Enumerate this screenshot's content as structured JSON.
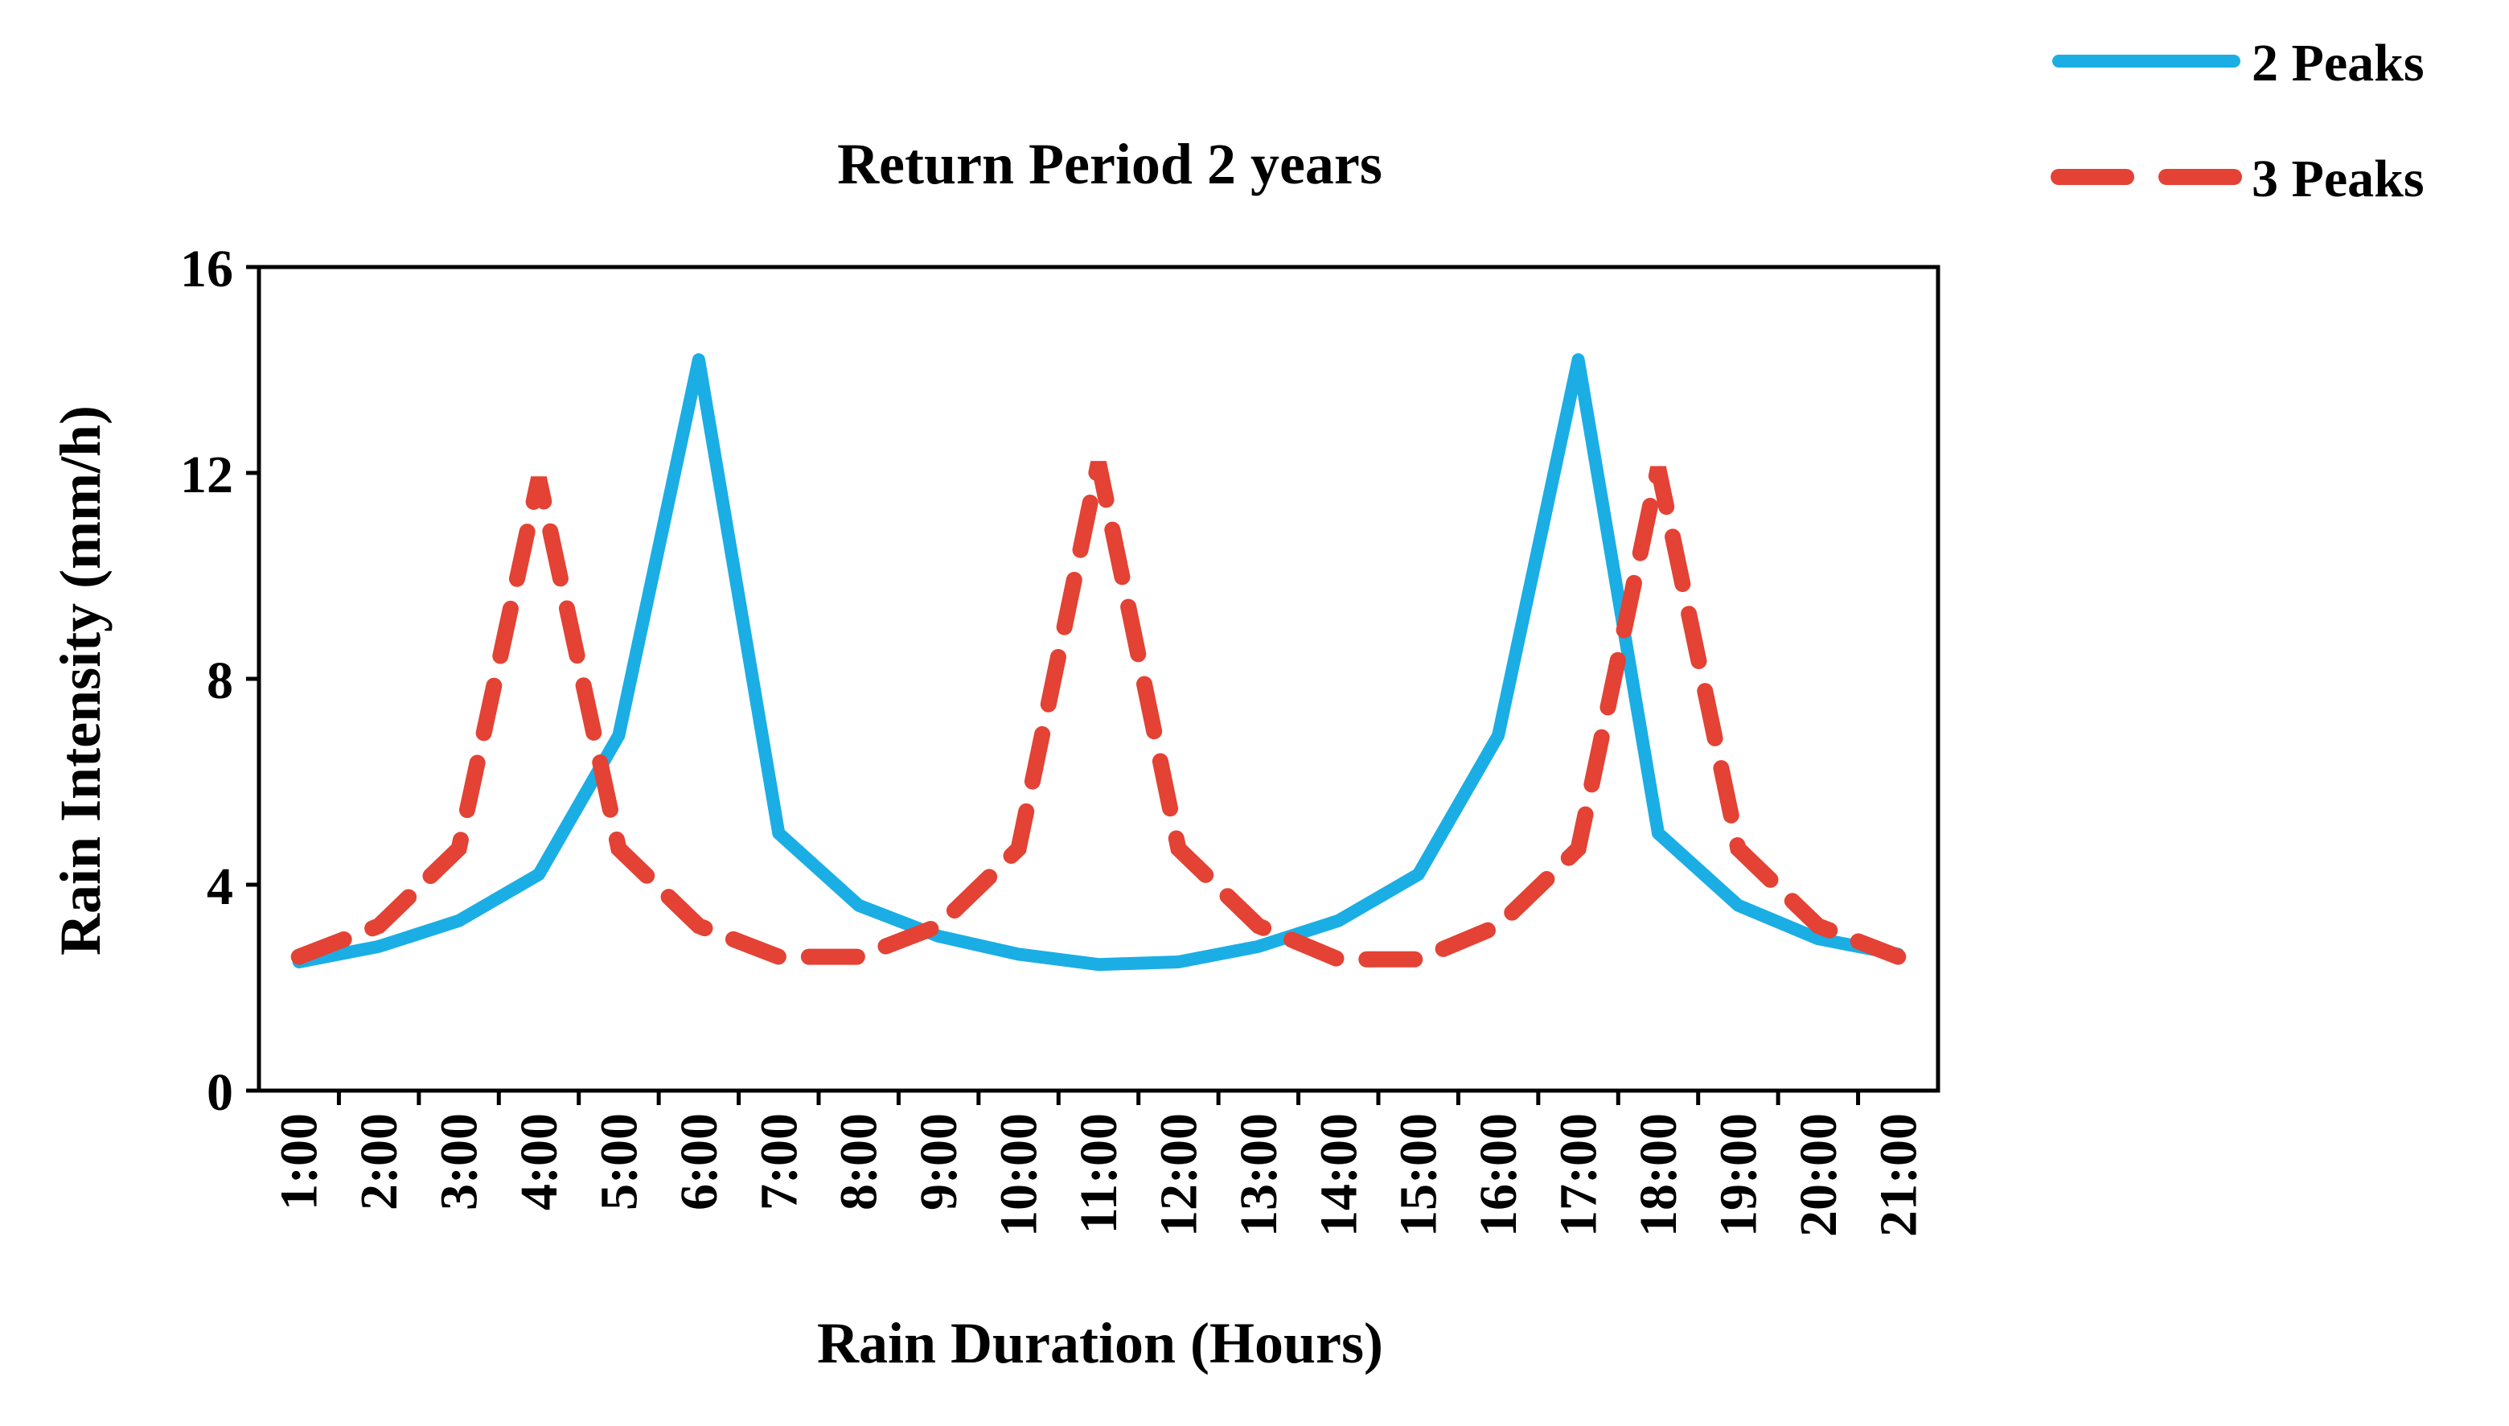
{
  "chart_data": {
    "type": "line",
    "title": "Return Period 2 years",
    "xlabel": "Rain Duration (Hours)",
    "ylabel": "Rain Intensity (mm/h)",
    "categories": [
      "1:00",
      "2:00",
      "3:00",
      "4:00",
      "5:00",
      "6:00",
      "7:00",
      "8:00",
      "9:00",
      "10:00",
      "11:00",
      "12:00",
      "13:00",
      "14:00",
      "15:00",
      "16:00",
      "17:00",
      "18:00",
      "19:00",
      "20:00",
      "21:00"
    ],
    "ylim": [
      0,
      16
    ],
    "yticks": [
      "0",
      "4",
      "8",
      "12",
      "16"
    ],
    "grid": false,
    "legend_position": "top-right",
    "series": [
      {
        "name": "2 Peaks",
        "color": "#1AAEE5",
        "style": "solid",
        "values": [
          2.5,
          2.8,
          3.3,
          4.2,
          6.9,
          14.2,
          5.0,
          3.6,
          3.0,
          2.65,
          2.45,
          2.5,
          2.8,
          3.3,
          4.2,
          6.9,
          14.2,
          5.0,
          3.6,
          2.95,
          2.65
        ]
      },
      {
        "name": "3 Peaks",
        "color": "#E34234",
        "style": "dashed",
        "values": [
          2.6,
          3.2,
          4.7,
          11.9,
          4.7,
          3.2,
          2.6,
          2.6,
          3.2,
          4.7,
          12.2,
          4.7,
          3.2,
          2.55,
          2.55,
          3.2,
          4.7,
          12.1,
          4.7,
          3.2,
          2.6
        ]
      }
    ]
  }
}
